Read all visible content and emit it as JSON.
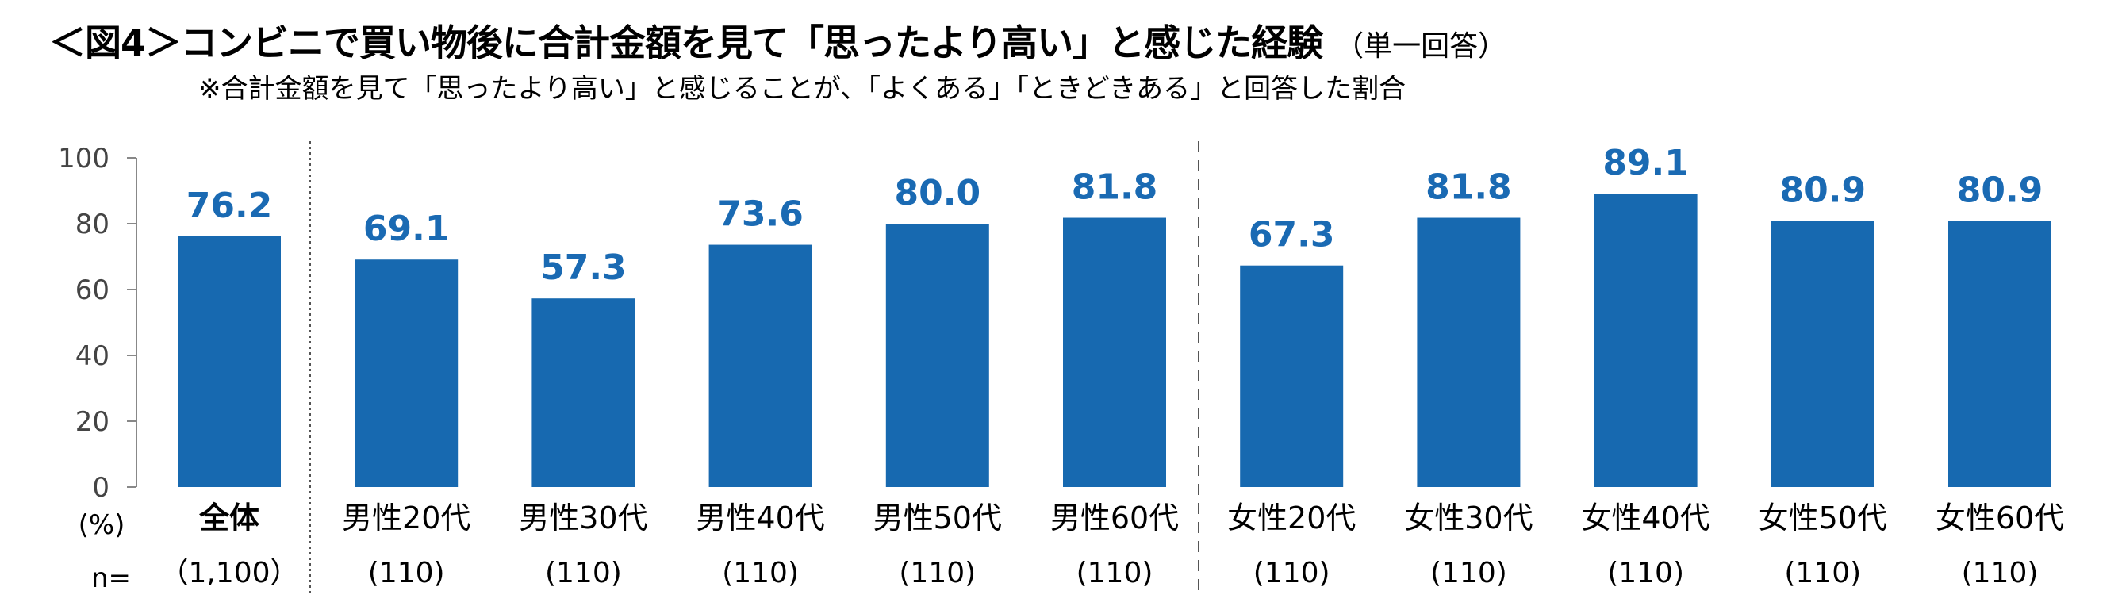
{
  "title": "＜図4＞コンビニで買い物後に合計金額を見て「思ったより高い」と感じた経験",
  "title_note": "（単一回答）",
  "subtitle": "※合計金額を見て「思ったより高い」と感じることが、「よくある」「ときどきある」と回答した割合",
  "colors": {
    "bar": "#1769b0",
    "value_label": "#1a6ab3"
  },
  "chart_data": {
    "type": "bar",
    "categories": [
      "全体",
      "男性20代",
      "男性30代",
      "男性40代",
      "男性50代",
      "男性60代",
      "女性20代",
      "女性30代",
      "女性40代",
      "女性50代",
      "女性60代"
    ],
    "values": [
      76.2,
      69.1,
      57.3,
      73.6,
      80.0,
      81.8,
      67.3,
      81.8,
      89.1,
      80.9,
      80.9
    ],
    "value_labels": [
      "76.2",
      "69.1",
      "57.3",
      "73.6",
      "80.0",
      "81.8",
      "67.3",
      "81.8",
      "89.1",
      "80.9",
      "80.9"
    ],
    "n_values": [
      "（1,100）",
      "(110)",
      "(110)",
      "(110)",
      "(110)",
      "(110)",
      "(110)",
      "(110)",
      "(110)",
      "(110)",
      "(110)"
    ],
    "n_prefix": "n=",
    "y_unit": "(%)",
    "y_ticks": [
      "0",
      "20",
      "40",
      "60",
      "80",
      "100"
    ],
    "ylim": [
      0,
      100
    ],
    "grid": false
  }
}
